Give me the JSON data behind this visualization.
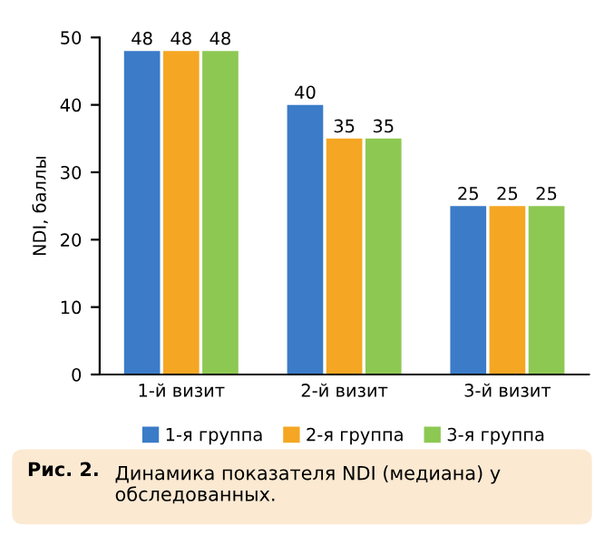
{
  "chart_data": {
    "type": "bar",
    "ylabel": "NDI, баллы",
    "categories": [
      "1-й визит",
      "2-й визит",
      "3-й визит"
    ],
    "series": [
      {
        "name": "1-я группа",
        "color": "#3b7bc8",
        "values": [
          48,
          40,
          25
        ]
      },
      {
        "name": "2-я группа",
        "color": "#f5a623",
        "values": [
          48,
          35,
          25
        ]
      },
      {
        "name": "3-я группа",
        "color": "#8dc853",
        "values": [
          48,
          35,
          25
        ]
      }
    ],
    "ylim": [
      0,
      50
    ],
    "yticks": [
      0,
      10,
      20,
      30,
      40,
      50
    ],
    "grid": false,
    "legend": "bottom",
    "data_labels": true,
    "annotations": [
      "Рис. 2.",
      "Динамика показателя NDI (медиана) у обследованных."
    ]
  }
}
